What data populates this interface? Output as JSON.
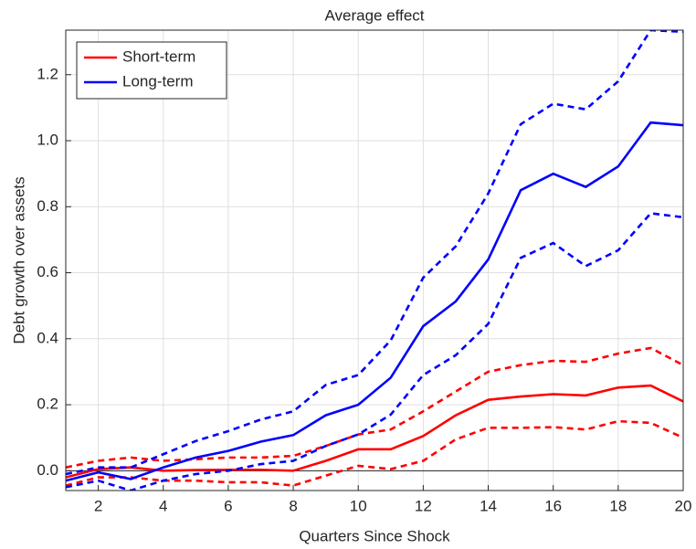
{
  "chart_data": {
    "type": "line",
    "title": "Average effect",
    "x_label": "Quarters Since Shock",
    "y_label": "Debt growth over assets",
    "x": [
      1,
      2,
      3,
      4,
      5,
      6,
      7,
      8,
      9,
      10,
      11,
      12,
      13,
      14,
      15,
      16,
      17,
      18,
      19,
      20
    ],
    "series": [
      {
        "name": "Short-term",
        "color": "#ff0000",
        "values": [
          -0.02,
          0.005,
          0.01,
          0,
          0.002,
          0.003,
          0.003,
          0,
          0.03,
          0.065,
          0.065,
          0.105,
          0.168,
          0.215,
          0.225,
          0.232,
          0.228,
          0.252,
          0.258,
          0.21
        ],
        "upper": [
          0.01,
          0.03,
          0.04,
          0.03,
          0.035,
          0.04,
          0.04,
          0.045,
          0.075,
          0.11,
          0.125,
          0.18,
          0.24,
          0.3,
          0.32,
          0.333,
          0.33,
          0.355,
          0.372,
          0.32
        ],
        "lower": [
          -0.045,
          -0.02,
          -0.02,
          -0.03,
          -0.03,
          -0.035,
          -0.035,
          -0.045,
          -0.015,
          0.015,
          0.005,
          0.03,
          0.095,
          0.13,
          0.13,
          0.132,
          0.125,
          0.15,
          0.145,
          0.1
        ]
      },
      {
        "name": "Long-term",
        "color": "#0000ff",
        "values": [
          -0.03,
          -0.005,
          -0.025,
          0.01,
          0.04,
          0.06,
          0.088,
          0.108,
          0.168,
          0.2,
          0.282,
          0.438,
          0.513,
          0.64,
          0.85,
          0.9,
          0.86,
          0.922,
          1.055,
          1.047
        ],
        "upper": [
          -0.01,
          0.01,
          0.01,
          0.05,
          0.09,
          0.12,
          0.155,
          0.18,
          0.26,
          0.29,
          0.395,
          0.585,
          0.68,
          0.84,
          1.05,
          1.112,
          1.095,
          1.18,
          1.335,
          1.33
        ],
        "lower": [
          -0.05,
          -0.03,
          -0.06,
          -0.03,
          -0.01,
          0,
          0.02,
          0.03,
          0.075,
          0.11,
          0.17,
          0.29,
          0.35,
          0.445,
          0.645,
          0.69,
          0.62,
          0.668,
          0.78,
          0.768
        ]
      }
    ],
    "xlim": [
      1,
      20
    ],
    "ylim": [
      -0.06,
      1.335
    ],
    "xticks": [
      2,
      4,
      6,
      8,
      10,
      12,
      14,
      16,
      18,
      20
    ],
    "yticks": [
      {
        "value": 0,
        "label": "0.0"
      },
      0.2,
      0.4,
      0.6,
      0.8,
      {
        "value": 1,
        "label": "1.0"
      },
      1.2
    ],
    "grid": true,
    "legend": "upper left"
  }
}
